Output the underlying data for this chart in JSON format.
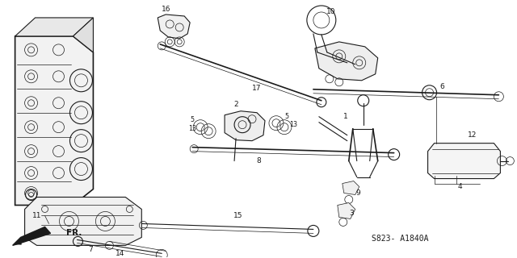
{
  "background_color": "#ffffff",
  "line_color": "#1a1a1a",
  "diagram_code": "S823- A1840A",
  "fig_width": 6.4,
  "fig_height": 3.2,
  "dpi": 100
}
